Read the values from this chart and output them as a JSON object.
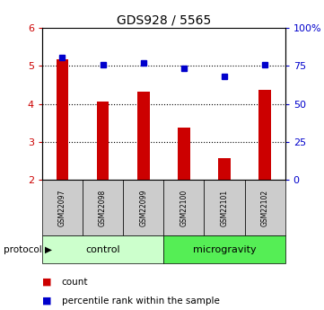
{
  "title": "GDS928 / 5565",
  "samples": [
    "GSM22097",
    "GSM22098",
    "GSM22099",
    "GSM22100",
    "GSM22101",
    "GSM22102"
  ],
  "bar_values": [
    5.18,
    4.05,
    4.32,
    3.38,
    2.57,
    4.38
  ],
  "dot_values": [
    5.22,
    5.02,
    5.08,
    4.93,
    4.73,
    5.02
  ],
  "ylim": [
    2,
    6
  ],
  "yticks": [
    2,
    3,
    4,
    5,
    6
  ],
  "y2ticks": [
    0,
    25,
    50,
    75,
    100
  ],
  "bar_color": "#cc0000",
  "dot_color": "#0000cc",
  "protocol_groups": [
    {
      "label": "control",
      "start": 0,
      "end": 3,
      "color": "#ccffcc"
    },
    {
      "label": "microgravity",
      "start": 3,
      "end": 6,
      "color": "#55ee55"
    }
  ],
  "tick_label_color_left": "#cc0000",
  "tick_label_color_right": "#0000cc",
  "legend_count_label": "count",
  "legend_pct_label": "percentile rank within the sample",
  "protocol_label": "protocol",
  "sample_box_color": "#cccccc",
  "bar_width": 0.3
}
